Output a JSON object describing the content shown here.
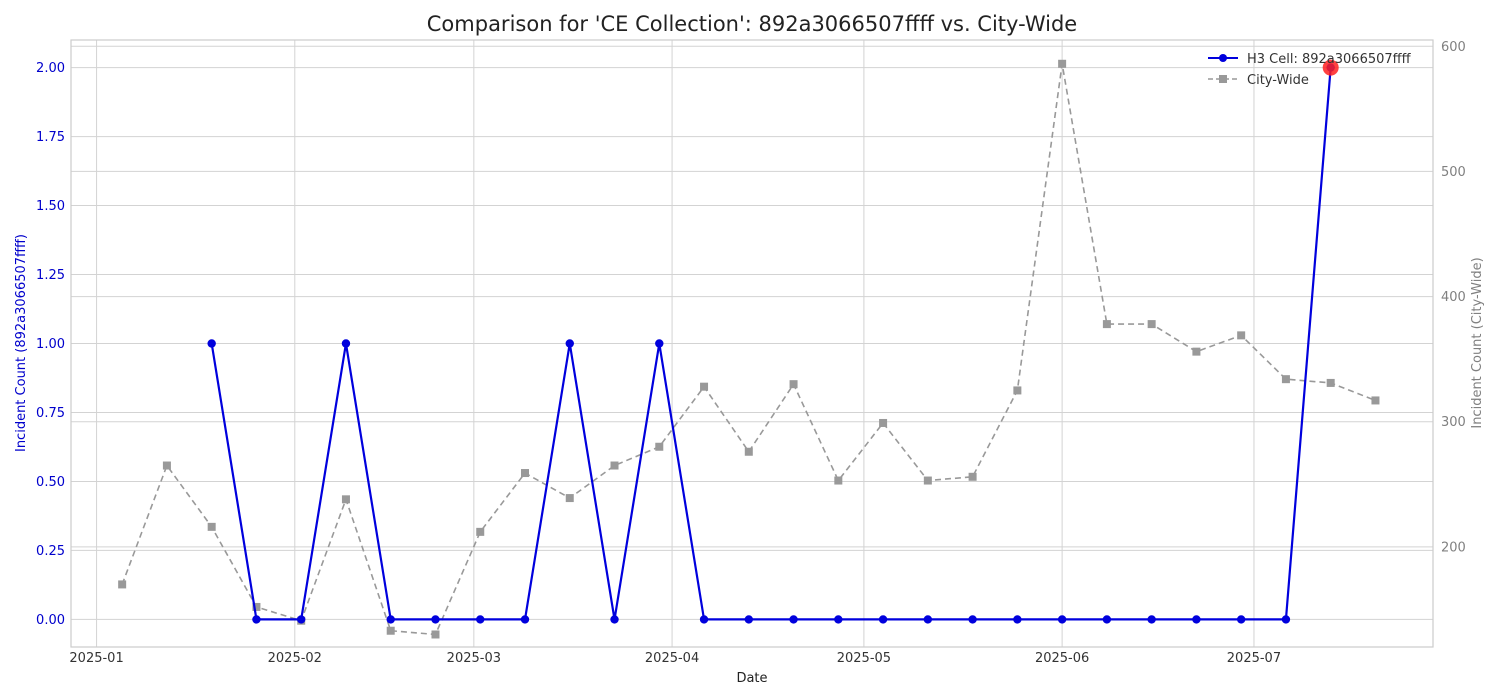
{
  "chart_data": {
    "type": "line",
    "title": "Comparison for 'CE Collection': 892a3066507ffff vs. City-Wide",
    "xlabel": "Date",
    "ylabel_left": "Incident Count (892a3066507ffff)",
    "ylabel_right": "Incident Count (City-Wide)",
    "x_range": [
      "2024-12-28",
      "2025-07-29"
    ],
    "x_ticks": [
      "2025-01",
      "2025-02",
      "2025-03",
      "2025-04",
      "2025-05",
      "2025-06",
      "2025-07"
    ],
    "ylim_left": [
      -0.1,
      2.1
    ],
    "ylim_right": [
      120,
      605
    ],
    "yticks_left": [
      "0.00",
      "0.25",
      "0.50",
      "0.75",
      "1.00",
      "1.25",
      "1.50",
      "1.75",
      "2.00"
    ],
    "yticks_right": [
      "200",
      "300",
      "400",
      "500",
      "600"
    ],
    "grid": true,
    "legend_position": "top-right",
    "colors": {
      "left": "#0000dd",
      "right": "#999999",
      "highlight": "#ff2020",
      "left_axis_text": "#0000cc",
      "right_axis_text": "#808080"
    },
    "series": [
      {
        "name": "H3 Cell: 892a3066507ffff",
        "axis": "left",
        "style": "solid-circle",
        "x": [
          "2025-01-19",
          "2025-01-26",
          "2025-02-02",
          "2025-02-09",
          "2025-02-16",
          "2025-02-23",
          "2025-03-02",
          "2025-03-09",
          "2025-03-16",
          "2025-03-23",
          "2025-03-30",
          "2025-04-06",
          "2025-04-13",
          "2025-04-20",
          "2025-04-27",
          "2025-05-04",
          "2025-05-11",
          "2025-05-18",
          "2025-05-25",
          "2025-06-01",
          "2025-06-08",
          "2025-06-15",
          "2025-06-22",
          "2025-06-29",
          "2025-07-06",
          "2025-07-13"
        ],
        "values": [
          1,
          0,
          0,
          1,
          0,
          0,
          0,
          0,
          1,
          0,
          1,
          0,
          0,
          0,
          0,
          0,
          0,
          0,
          0,
          0,
          0,
          0,
          0,
          0,
          0,
          2
        ]
      },
      {
        "name": "City-Wide",
        "axis": "right",
        "style": "dashed-square",
        "x": [
          "2025-01-05",
          "2025-01-12",
          "2025-01-19",
          "2025-01-26",
          "2025-02-02",
          "2025-02-09",
          "2025-02-16",
          "2025-02-23",
          "2025-03-02",
          "2025-03-09",
          "2025-03-16",
          "2025-03-23",
          "2025-03-30",
          "2025-04-06",
          "2025-04-13",
          "2025-04-20",
          "2025-04-27",
          "2025-05-04",
          "2025-05-11",
          "2025-05-18",
          "2025-05-25",
          "2025-06-01",
          "2025-06-08",
          "2025-06-15",
          "2025-06-22",
          "2025-06-29",
          "2025-07-06",
          "2025-07-13",
          "2025-07-20"
        ],
        "values": [
          170,
          265,
          216,
          152,
          141,
          238,
          133,
          130,
          212,
          259,
          239,
          265,
          280,
          328,
          276,
          330,
          253,
          299,
          253,
          256,
          325,
          586,
          378,
          378,
          356,
          369,
          334,
          331,
          317
        ]
      }
    ],
    "highlight": {
      "series": 0,
      "x": "2025-07-13",
      "value": 2
    }
  }
}
